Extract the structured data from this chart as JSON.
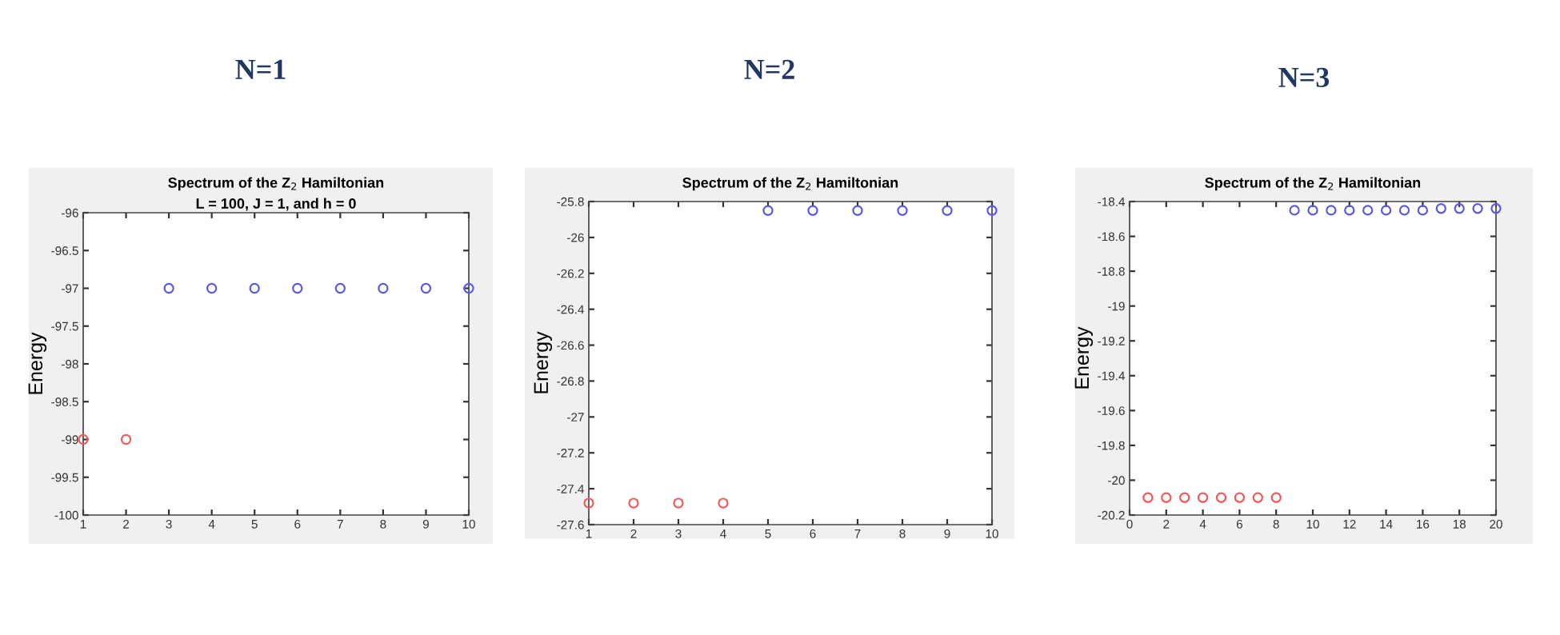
{
  "chart_data": [
    {
      "type": "scatter",
      "title": "N=1",
      "subtitle": "Spectrum of the Z$_{2}$ Hamiltonian",
      "annotations": [
        "L = 100, J = 1, and h = 0"
      ],
      "ylabel": "Energy",
      "marker": "circle",
      "grid": false,
      "legend": false,
      "xlim": [
        1,
        10
      ],
      "xticks": [
        1,
        2,
        3,
        4,
        5,
        6,
        7,
        8,
        9,
        10
      ],
      "ylim": [
        -100,
        -96
      ],
      "yticks": [
        -100,
        -99.5,
        -99,
        -98.5,
        -98,
        -97.5,
        -97,
        -96.5,
        -96
      ],
      "series": [
        {
          "color": "#f05a5a",
          "x": [
            1,
            2
          ],
          "values": [
            -99,
            -99
          ]
        },
        {
          "color": "#5a5ae6",
          "x": [
            3,
            4,
            5,
            6,
            7,
            8,
            9,
            10
          ],
          "values": [
            -97,
            -97,
            -97,
            -97,
            -97,
            -97,
            -97,
            -97
          ]
        }
      ]
    },
    {
      "type": "scatter",
      "title": "N=2",
      "subtitle": "Spectrum of the Z$_{2}$ Hamiltonian",
      "ylabel": "Energy",
      "marker": "circle",
      "grid": false,
      "legend": false,
      "xlim": [
        1,
        10
      ],
      "xticks": [
        1,
        2,
        3,
        4,
        5,
        6,
        7,
        8,
        9,
        10
      ],
      "ylim": [
        -27.6,
        -25.8
      ],
      "yticks": [
        -27.6,
        -27.4,
        -27.2,
        -27,
        -26.8,
        -26.6,
        -26.4,
        -26.2,
        -26,
        -25.8
      ],
      "series": [
        {
          "color": "#f05a5a",
          "x": [
            1,
            2,
            3,
            4
          ],
          "values": [
            -27.48,
            -27.48,
            -27.48,
            -27.48
          ]
        },
        {
          "color": "#5a5ae6",
          "x": [
            5,
            6,
            7,
            8,
            9,
            10
          ],
          "values": [
            -25.85,
            -25.85,
            -25.85,
            -25.85,
            -25.85,
            -25.85
          ]
        }
      ]
    },
    {
      "type": "scatter",
      "title": "N=3",
      "subtitle": "Spectrum of the Z$_{2}$ Hamiltonian",
      "ylabel": "Energy",
      "marker": "circle",
      "grid": false,
      "legend": false,
      "xlim": [
        0,
        20
      ],
      "xticks": [
        0,
        2,
        4,
        6,
        8,
        10,
        12,
        14,
        16,
        18,
        20
      ],
      "ylim": [
        -20.2,
        -18.4
      ],
      "yticks": [
        -20.2,
        -20,
        -19.8,
        -19.6,
        -19.4,
        -19.2,
        -19,
        -18.8,
        -18.6,
        -18.4
      ],
      "series": [
        {
          "color": "#f05a5a",
          "x": [
            1,
            2,
            3,
            4,
            5,
            6,
            7,
            8
          ],
          "values": [
            -20.1,
            -20.1,
            -20.1,
            -20.1,
            -20.1,
            -20.1,
            -20.1,
            -20.1
          ]
        },
        {
          "color": "#5a5ae6",
          "x": [
            9,
            10,
            11,
            12,
            13,
            14,
            15,
            16,
            17,
            18,
            19,
            20
          ],
          "values": [
            -18.45,
            -18.45,
            -18.45,
            -18.45,
            -18.45,
            -18.45,
            -18.45,
            -18.45,
            -18.44,
            -18.44,
            -18.44,
            -18.44
          ]
        }
      ]
    }
  ]
}
